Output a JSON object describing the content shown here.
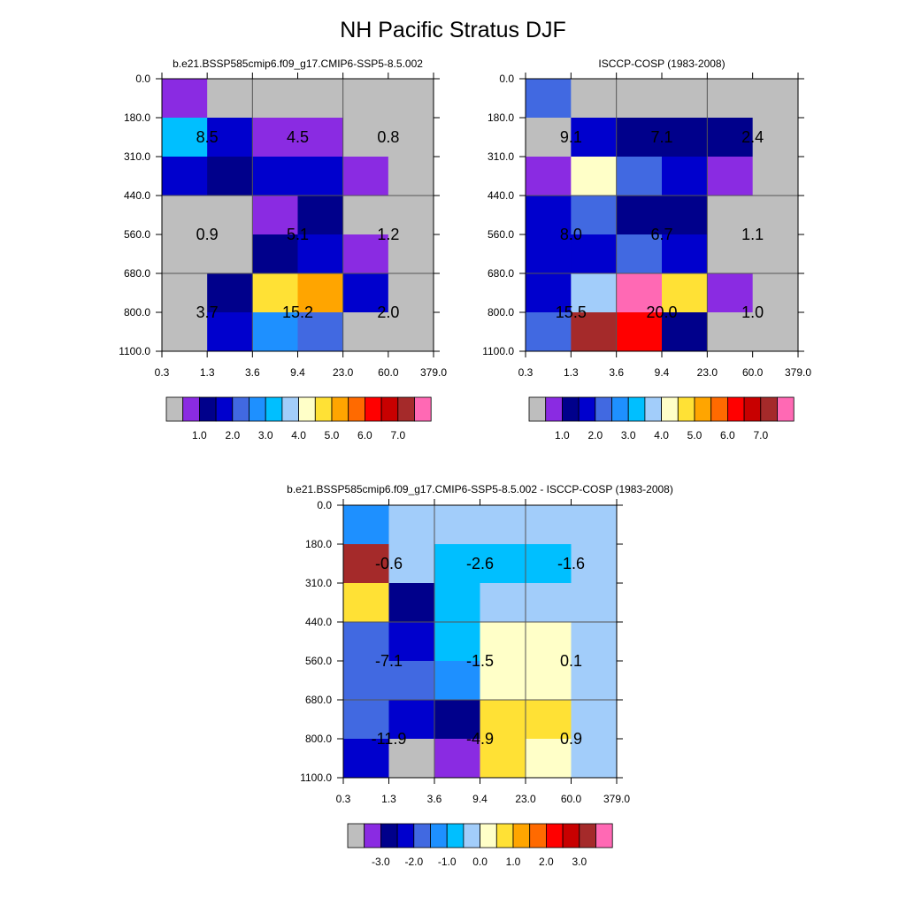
{
  "page": {
    "title": "NH Pacific Stratus DJF"
  },
  "legend_colors": [
    "#bebebe",
    "#8a2be2",
    "#00008b",
    "#0000cd",
    "#4169e1",
    "#1e90ff",
    "#00bfff",
    "#a2cdfa",
    "#ffffc8",
    "#ffe135",
    "#ffa500",
    "#ff6a00",
    "#ff0000",
    "#c80000",
    "#a52a2a",
    "#ff69b4"
  ],
  "chart_data": [
    {
      "type": "heatmap",
      "title": "b.e21.BSSP585cmip6.f09_g17.CMIP6-SSP5-8.5.002",
      "x_ticks": [
        "0.3",
        "1.3",
        "3.6",
        "9.4",
        "23.0",
        "60.0",
        "379.0"
      ],
      "y_ticks": [
        "0.0",
        "180.0",
        "310.0",
        "440.0",
        "560.0",
        "680.0",
        "800.0",
        "1100.0"
      ],
      "cells": [
        [
          1,
          0,
          0,
          0,
          0,
          0
        ],
        [
          6,
          3,
          1,
          1,
          0,
          0
        ],
        [
          3,
          2,
          3,
          3,
          1,
          0
        ],
        [
          0,
          0,
          1,
          2,
          0,
          0
        ],
        [
          0,
          0,
          2,
          3,
          1,
          0
        ],
        [
          0,
          2,
          9,
          10,
          3,
          0
        ],
        [
          0,
          3,
          5,
          4,
          0,
          0
        ]
      ],
      "block_labels": [
        {
          "row": 0,
          "col": 0,
          "text": "8.5"
        },
        {
          "row": 0,
          "col": 1,
          "text": "4.5"
        },
        {
          "row": 0,
          "col": 2,
          "text": "0.8"
        },
        {
          "row": 1,
          "col": 0,
          "text": "0.9"
        },
        {
          "row": 1,
          "col": 1,
          "text": "5.1"
        },
        {
          "row": 1,
          "col": 2,
          "text": "1.2"
        },
        {
          "row": 2,
          "col": 0,
          "text": "3.7"
        },
        {
          "row": 2,
          "col": 1,
          "text": "15.2"
        },
        {
          "row": 2,
          "col": 2,
          "text": "2.0"
        }
      ],
      "colorbar": {
        "labels": [
          "1.0",
          "2.0",
          "3.0",
          "4.0",
          "5.0",
          "6.0",
          "7.0"
        ]
      }
    },
    {
      "type": "heatmap",
      "title": "ISCCP-COSP (1983-2008)",
      "x_ticks": [
        "0.3",
        "1.3",
        "3.6",
        "9.4",
        "23.0",
        "60.0",
        "379.0"
      ],
      "y_ticks": [
        "0.0",
        "180.0",
        "310.0",
        "440.0",
        "560.0",
        "680.0",
        "800.0",
        "1100.0"
      ],
      "cells": [
        [
          4,
          0,
          0,
          0,
          0,
          0
        ],
        [
          0,
          3,
          2,
          2,
          2,
          0
        ],
        [
          1,
          8,
          4,
          3,
          1,
          0
        ],
        [
          3,
          4,
          2,
          2,
          0,
          0
        ],
        [
          3,
          3,
          4,
          3,
          0,
          0
        ],
        [
          3,
          7,
          15,
          9,
          1,
          0
        ],
        [
          4,
          14,
          12,
          2,
          0,
          0
        ]
      ],
      "block_labels": [
        {
          "row": 0,
          "col": 0,
          "text": "9.1"
        },
        {
          "row": 0,
          "col": 1,
          "text": "7.1"
        },
        {
          "row": 0,
          "col": 2,
          "text": "2.4"
        },
        {
          "row": 1,
          "col": 0,
          "text": "8.0"
        },
        {
          "row": 1,
          "col": 1,
          "text": "6.7"
        },
        {
          "row": 1,
          "col": 2,
          "text": "1.1"
        },
        {
          "row": 2,
          "col": 0,
          "text": "15.5"
        },
        {
          "row": 2,
          "col": 1,
          "text": "20.0"
        },
        {
          "row": 2,
          "col": 2,
          "text": "1.0"
        }
      ],
      "colorbar": {
        "labels": [
          "1.0",
          "2.0",
          "3.0",
          "4.0",
          "5.0",
          "6.0",
          "7.0"
        ]
      }
    },
    {
      "type": "heatmap",
      "title": "b.e21.BSSP585cmip6.f09_g17.CMIP6-SSP5-8.5.002 - ISCCP-COSP (1983-2008)",
      "x_ticks": [
        "0.3",
        "1.3",
        "3.6",
        "9.4",
        "23.0",
        "60.0",
        "379.0"
      ],
      "y_ticks": [
        "0.0",
        "180.0",
        "310.0",
        "440.0",
        "560.0",
        "680.0",
        "800.0",
        "1100.0"
      ],
      "cells": [
        [
          5,
          7,
          7,
          7,
          7,
          7
        ],
        [
          14,
          7,
          6,
          6,
          6,
          7
        ],
        [
          9,
          2,
          6,
          7,
          7,
          7
        ],
        [
          4,
          3,
          6,
          8,
          8,
          7
        ],
        [
          4,
          4,
          5,
          8,
          8,
          7
        ],
        [
          4,
          3,
          2,
          9,
          9,
          7
        ],
        [
          3,
          0,
          1,
          9,
          8,
          7
        ]
      ],
      "block_labels": [
        {
          "row": 0,
          "col": 0,
          "text": "-0.6"
        },
        {
          "row": 0,
          "col": 1,
          "text": "-2.6"
        },
        {
          "row": 0,
          "col": 2,
          "text": "-1.6"
        },
        {
          "row": 1,
          "col": 0,
          "text": "-7.1"
        },
        {
          "row": 1,
          "col": 1,
          "text": "-1.5"
        },
        {
          "row": 1,
          "col": 2,
          "text": "0.1"
        },
        {
          "row": 2,
          "col": 0,
          "text": "-11.9"
        },
        {
          "row": 2,
          "col": 1,
          "text": "-4.9"
        },
        {
          "row": 2,
          "col": 2,
          "text": "0.9"
        }
      ],
      "colorbar": {
        "labels": [
          "-3.0",
          "-2.0",
          "-1.0",
          "0.0",
          "1.0",
          "2.0",
          "3.0"
        ]
      }
    }
  ]
}
